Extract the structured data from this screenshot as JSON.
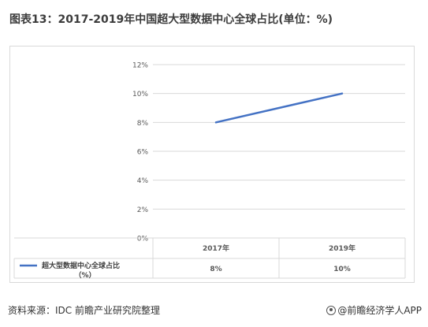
{
  "title": "图表13：2017-2019年中国超大型数据中心全球占比(单位：%)",
  "footer": {
    "source": "资料来源：IDC 前瞻产业研究院整理",
    "brand": "@前瞻经济学人APP"
  },
  "colors": {
    "series": "#4472c4",
    "grid": "#d9d9d9",
    "text": "#595959"
  },
  "chart_data": {
    "type": "line",
    "categories": [
      "2017年",
      "2019年"
    ],
    "series": [
      {
        "name": "超大型数据中心全球占比（%）",
        "values": [
          8,
          10
        ],
        "labels": [
          "8%",
          "10%"
        ]
      }
    ],
    "ylim": [
      0,
      12
    ],
    "yticks": [
      "0%",
      "2%",
      "4%",
      "6%",
      "8%",
      "10%",
      "12%"
    ],
    "ytick_values": [
      0,
      2,
      4,
      6,
      8,
      10,
      12
    ],
    "grid": true,
    "legend": "data-table"
  }
}
